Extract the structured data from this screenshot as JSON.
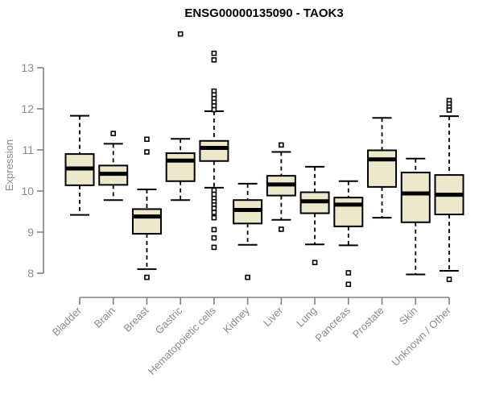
{
  "figure": {
    "title": "ENSG00000135090 - TAOK3"
  },
  "chart_data": {
    "type": "boxplot",
    "title": "ENSG00000135090 - TAOK3",
    "xlabel": "",
    "ylabel": "Expression",
    "ylim": [
      7.6,
      13.9
    ],
    "yticks": [
      8,
      9,
      10,
      11,
      12,
      13
    ],
    "grid": false,
    "legend": "none",
    "categories": [
      "Bladder",
      "Brain",
      "Breast",
      "Gastric",
      "Hematopoietic cells",
      "Kidney",
      "Liver",
      "Lung",
      "Pancreas",
      "Prostate",
      "Skin",
      "Unknown / Other"
    ],
    "series": [
      {
        "name": "Bladder",
        "whisker_low": 9.42,
        "q1": 10.14,
        "median": 10.55,
        "q3": 10.9,
        "whisker_high": 11.83,
        "outliers": []
      },
      {
        "name": "Brain",
        "whisker_low": 9.78,
        "q1": 10.15,
        "median": 10.42,
        "q3": 10.62,
        "whisker_high": 11.15,
        "outliers": [
          11.4
        ]
      },
      {
        "name": "Breast",
        "whisker_low": 8.1,
        "q1": 8.96,
        "median": 9.38,
        "q3": 9.56,
        "whisker_high": 10.04,
        "outliers": [
          11.26,
          10.95,
          7.9
        ]
      },
      {
        "name": "Gastric",
        "whisker_low": 9.78,
        "q1": 10.24,
        "median": 10.74,
        "q3": 10.92,
        "whisker_high": 11.27,
        "outliers": [
          13.82
        ]
      },
      {
        "name": "Hematopoietic cells",
        "whisker_low": 10.08,
        "q1": 10.73,
        "median": 11.05,
        "q3": 11.22,
        "whisker_high": 11.94,
        "outliers": [
          13.35,
          13.19,
          12.43,
          12.34,
          12.25,
          12.16,
          12.07,
          11.98,
          10.02,
          9.92,
          9.82,
          9.74,
          9.66,
          9.58,
          9.48,
          9.35,
          9.06,
          8.86,
          8.63
        ]
      },
      {
        "name": "Kidney",
        "whisker_low": 8.69,
        "q1": 9.21,
        "median": 9.54,
        "q3": 9.78,
        "whisker_high": 10.18,
        "outliers": [
          7.9
        ]
      },
      {
        "name": "Liver",
        "whisker_low": 9.3,
        "q1": 9.89,
        "median": 10.16,
        "q3": 10.37,
        "whisker_high": 10.95,
        "outliers": [
          11.12,
          9.07
        ]
      },
      {
        "name": "Lung",
        "whisker_low": 8.7,
        "q1": 9.46,
        "median": 9.75,
        "q3": 9.97,
        "whisker_high": 10.59,
        "outliers": [
          8.26
        ]
      },
      {
        "name": "Pancreas",
        "whisker_low": 8.68,
        "q1": 9.14,
        "median": 9.67,
        "q3": 9.84,
        "whisker_high": 10.24,
        "outliers": [
          8.01,
          7.73
        ]
      },
      {
        "name": "Prostate",
        "whisker_low": 9.35,
        "q1": 10.1,
        "median": 10.77,
        "q3": 10.99,
        "whisker_high": 11.78,
        "outliers": []
      },
      {
        "name": "Skin",
        "whisker_low": 7.97,
        "q1": 9.24,
        "median": 9.94,
        "q3": 10.45,
        "whisker_high": 10.79,
        "outliers": []
      },
      {
        "name": "Unknown / Other",
        "whisker_low": 8.06,
        "q1": 9.43,
        "median": 9.91,
        "q3": 10.39,
        "whisker_high": 11.82,
        "outliers": [
          12.2,
          12.12,
          12.04,
          11.97,
          7.85
        ]
      }
    ],
    "colors": {
      "box_fill": "#EDE8CC",
      "box_border": "#000000",
      "median": "#000000",
      "whisker": "#000000",
      "outlier_stroke": "#000000",
      "outlier_fill": "#ffffff",
      "axis": "#808080",
      "axis_text": "#8a8a8a",
      "title": "#000000",
      "background": "#ffffff"
    }
  }
}
